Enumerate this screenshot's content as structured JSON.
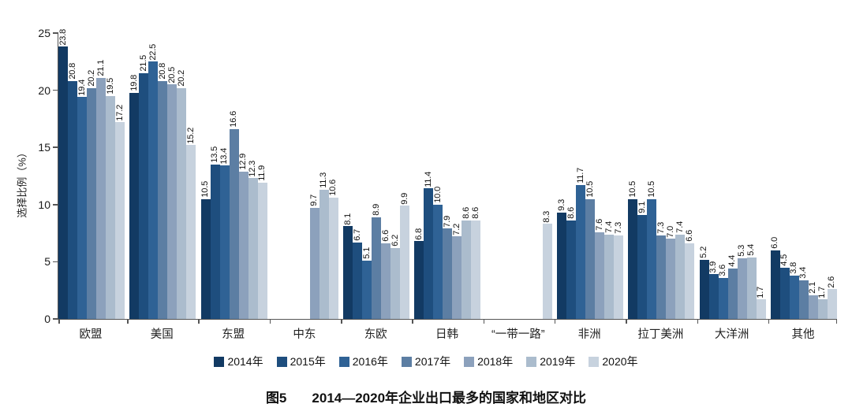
{
  "chart_data": {
    "type": "bar",
    "figure_label": "图5",
    "title": "2014—2020年企业出口最多的国家和地区对比",
    "ylabel": "选择比例（%）",
    "ylim": [
      0,
      25
    ],
    "yticks": [
      0,
      5,
      10,
      15,
      20,
      25
    ],
    "grid": false,
    "legend_position": "bottom",
    "bar_label_format": "one-decimal-rotated-90",
    "categories": [
      "欧盟",
      "美国",
      "东盟",
      "中东",
      "东欧",
      "日韩",
      "“一带一路”",
      "非洲",
      "拉丁美洲",
      "大洋洲",
      "其他"
    ],
    "series": [
      {
        "name": "2014年",
        "color": "#123a63",
        "values": [
          23.8,
          19.8,
          10.5,
          null,
          8.1,
          6.8,
          null,
          9.3,
          10.5,
          5.2,
          6.0
        ]
      },
      {
        "name": "2015年",
        "color": "#1e4e7e",
        "values": [
          20.8,
          21.5,
          13.5,
          null,
          6.7,
          11.4,
          null,
          8.6,
          9.1,
          3.9,
          4.5
        ]
      },
      {
        "name": "2016年",
        "color": "#2f6295",
        "values": [
          19.4,
          22.5,
          13.4,
          null,
          5.1,
          10.0,
          null,
          11.7,
          10.5,
          3.6,
          3.8
        ]
      },
      {
        "name": "2017年",
        "color": "#5c7ea3",
        "values": [
          20.2,
          20.8,
          16.6,
          null,
          8.9,
          7.9,
          null,
          10.5,
          7.3,
          4.4,
          3.4
        ]
      },
      {
        "name": "2018年",
        "color": "#8ca1bc",
        "values": [
          21.1,
          20.5,
          12.9,
          9.7,
          6.6,
          7.2,
          null,
          7.6,
          7.0,
          5.3,
          2.1
        ]
      },
      {
        "name": "2019年",
        "color": "#abbccd",
        "values": [
          19.5,
          20.2,
          12.3,
          11.3,
          6.2,
          8.6,
          null,
          7.4,
          7.4,
          5.4,
          1.7
        ]
      },
      {
        "name": "2020年",
        "color": "#c7d2de",
        "values": [
          17.2,
          15.2,
          11.9,
          10.6,
          9.9,
          8.6,
          8.3,
          7.3,
          6.6,
          1.7,
          2.6
        ]
      }
    ],
    "axis_color": "#555555"
  }
}
